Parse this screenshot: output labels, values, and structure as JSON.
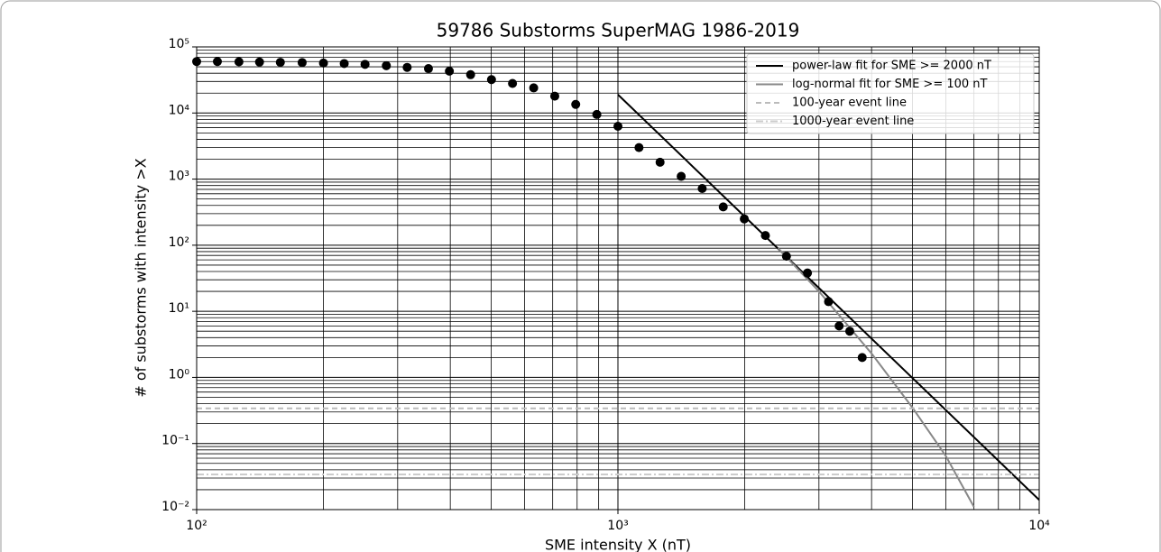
{
  "chart_data": {
    "type": "scatter",
    "title": "59786 Substorms SuperMAG 1986-2019",
    "xlabel": "SME intensity X (nT)",
    "ylabel": "# of substorms with intensity >X",
    "xscale": "log",
    "yscale": "log",
    "grid": true,
    "legend": "upper right",
    "color": "#000000",
    "x": [
      100,
      112,
      126,
      141,
      158,
      178,
      200,
      224,
      251,
      282,
      316,
      355,
      398,
      447,
      501,
      562,
      631,
      708,
      794,
      891,
      1000,
      1122,
      1259,
      1413,
      1585,
      1778,
      1995,
      2239,
      2512,
      2818,
      3162,
      3350,
      3550,
      3800
    ],
    "values": [
      60000,
      60000,
      59500,
      59000,
      58500,
      58000,
      57000,
      56000,
      54500,
      52000,
      49000,
      47000,
      43000,
      38000,
      32000,
      28000,
      24000,
      18000,
      13500,
      9500,
      6300,
      3000,
      1800,
      1100,
      720,
      380,
      250,
      140,
      68,
      38,
      14,
      6,
      5,
      2
    ],
    "series": [
      {
        "name": "power-law fit for SME >= 2000 nT",
        "color": "#000000",
        "linestyle": "solid",
        "x": [
          1000,
          10000
        ],
        "values": [
          19000,
          0.014
        ]
      },
      {
        "name": "log-normal fit for SME >= 100 nT",
        "color": "#888888",
        "linestyle": "solid",
        "x": [
          2400,
          3000,
          4000,
          5000,
          6000,
          7000
        ],
        "values": [
          90,
          20,
          2.3,
          0.35,
          0.065,
          0.011
        ]
      },
      {
        "name": "100-year event line",
        "color": "#bbbbbb",
        "linestyle": "dashed",
        "y": 0.34
      },
      {
        "name": "1000-year event line",
        "color": "#cccccc",
        "linestyle": "dashdot",
        "y": 0.034
      }
    ],
    "xlim": [
      100,
      10000
    ],
    "ylim": [
      0.01,
      100000
    ],
    "xticks": [
      {
        "value": 100,
        "label": "10²"
      },
      {
        "value": 1000,
        "label": "10³"
      },
      {
        "value": 10000,
        "label": "10⁴"
      }
    ],
    "yticks": [
      {
        "value": 0.01,
        "label": "10⁻²"
      },
      {
        "value": 0.1,
        "label": "10⁻¹"
      },
      {
        "value": 1,
        "label": "10⁰"
      },
      {
        "value": 10,
        "label": "10¹"
      },
      {
        "value": 100,
        "label": "10²"
      },
      {
        "value": 1000,
        "label": "10³"
      },
      {
        "value": 10000,
        "label": "10⁴"
      },
      {
        "value": 100000,
        "label": "10⁵"
      }
    ],
    "xminorticks": [
      200,
      300,
      400,
      500,
      600,
      700,
      800,
      900,
      2000,
      3000,
      4000,
      5000,
      6000,
      7000,
      8000,
      9000
    ],
    "yminorticks": [
      0.02,
      0.03,
      0.04,
      0.05,
      0.06,
      0.07,
      0.08,
      0.09,
      0.2,
      0.3,
      0.4,
      0.5,
      0.6,
      0.7,
      0.8,
      0.9,
      2,
      3,
      4,
      5,
      6,
      7,
      8,
      9,
      20,
      30,
      40,
      50,
      60,
      70,
      80,
      90,
      200,
      300,
      400,
      500,
      600,
      700,
      800,
      900,
      2000,
      3000,
      4000,
      5000,
      6000,
      7000,
      8000,
      9000,
      20000,
      30000,
      40000,
      50000,
      60000,
      70000,
      80000,
      90000
    ]
  }
}
